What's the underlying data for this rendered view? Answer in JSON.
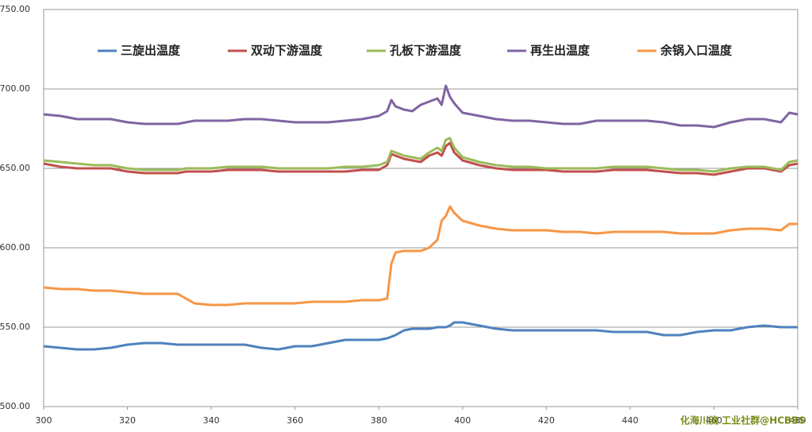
{
  "chart_data": {
    "type": "line",
    "x": [
      300,
      304,
      308,
      312,
      316,
      320,
      324,
      328,
      332,
      334,
      336,
      340,
      344,
      348,
      352,
      356,
      360,
      364,
      368,
      372,
      376,
      380,
      382,
      383,
      384,
      386,
      388,
      390,
      392,
      394,
      395,
      396,
      397,
      398,
      400,
      404,
      408,
      412,
      416,
      420,
      424,
      428,
      432,
      436,
      440,
      444,
      448,
      452,
      456,
      460,
      464,
      468,
      472,
      476,
      478,
      480
    ],
    "series": [
      {
        "name": "三旋出温度",
        "color": "#4f81bd",
        "values": [
          538,
          537,
          536,
          536,
          537,
          539,
          540,
          540,
          539,
          539,
          539,
          539,
          539,
          539,
          537,
          536,
          538,
          538,
          540,
          542,
          542,
          542,
          543,
          544,
          545,
          548,
          549,
          549,
          549,
          550,
          550,
          550,
          551,
          553,
          553,
          551,
          549,
          548,
          548,
          548,
          548,
          548,
          548,
          547,
          547,
          547,
          545,
          545,
          547,
          548,
          548,
          550,
          551,
          550,
          550,
          550
        ]
      },
      {
        "name": "双动下游温度",
        "color": "#c0504d",
        "values": [
          653,
          651,
          650,
          650,
          650,
          648,
          647,
          647,
          647,
          648,
          648,
          648,
          649,
          649,
          649,
          648,
          648,
          648,
          648,
          648,
          649,
          649,
          652,
          659,
          658,
          656,
          655,
          654,
          658,
          660,
          658,
          664,
          666,
          660,
          655,
          652,
          650,
          649,
          649,
          649,
          648,
          648,
          648,
          649,
          649,
          649,
          648,
          647,
          647,
          646,
          648,
          650,
          650,
          648,
          652,
          653
        ]
      },
      {
        "name": "孔板下游温度",
        "color": "#9bbb59",
        "values": [
          655,
          654,
          653,
          652,
          652,
          650,
          649,
          649,
          649,
          650,
          650,
          650,
          651,
          651,
          651,
          650,
          650,
          650,
          650,
          651,
          651,
          652,
          654,
          661,
          660,
          658,
          657,
          656,
          660,
          663,
          661,
          668,
          669,
          663,
          657,
          654,
          652,
          651,
          651,
          650,
          650,
          650,
          650,
          651,
          651,
          651,
          650,
          649,
          649,
          648,
          650,
          651,
          651,
          649,
          654,
          655
        ]
      },
      {
        "name": "再生出温度",
        "color": "#8064a2",
        "values": [
          684,
          683,
          681,
          681,
          681,
          679,
          678,
          678,
          678,
          679,
          680,
          680,
          680,
          681,
          681,
          680,
          679,
          679,
          679,
          680,
          681,
          683,
          686,
          693,
          689,
          687,
          686,
          690,
          692,
          694,
          690,
          702,
          695,
          691,
          685,
          683,
          681,
          680,
          680,
          679,
          678,
          678,
          680,
          680,
          680,
          680,
          679,
          677,
          677,
          676,
          679,
          681,
          681,
          679,
          685,
          684
        ]
      },
      {
        "name": "余锅入口温度",
        "color": "#f79646",
        "values": [
          575,
          574,
          574,
          573,
          573,
          572,
          571,
          571,
          571,
          568,
          565,
          564,
          564,
          565,
          565,
          565,
          565,
          566,
          566,
          566,
          567,
          567,
          568,
          590,
          597,
          598,
          598,
          598,
          600,
          605,
          617,
          620,
          626,
          622,
          617,
          614,
          612,
          611,
          611,
          611,
          610,
          610,
          609,
          610,
          610,
          610,
          610,
          609,
          609,
          609,
          611,
          612,
          612,
          611,
          615,
          615
        ]
      }
    ],
    "xlim": [
      300,
      480
    ],
    "xticks": [
      300,
      320,
      340,
      360,
      380,
      400,
      420,
      440,
      460,
      480
    ],
    "ylim": [
      500,
      750
    ],
    "yticks": [
      {
        "value": 500,
        "label": "500.00"
      },
      {
        "value": 550,
        "label": "550.00"
      },
      {
        "value": 600,
        "label": "600.00"
      },
      {
        "value": 650,
        "label": "650.00"
      },
      {
        "value": 700,
        "label": "700.00"
      },
      {
        "value": 750,
        "label": "750.00"
      }
    ],
    "grid": true,
    "legend": "top",
    "watermark": "化海川流 工业社群@HCBBS"
  }
}
